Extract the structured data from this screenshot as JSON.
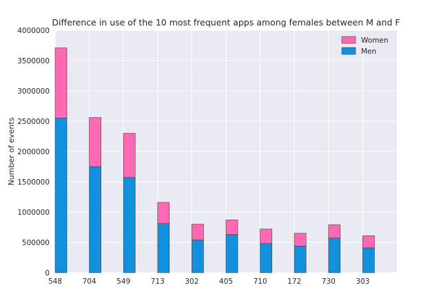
{
  "chart_data": {
    "type": "bar",
    "stacked": true,
    "title": "Difference in use of the 10 most frequent apps among females between M and F",
    "xlabel": "",
    "ylabel": "Number of events",
    "categories": [
      "548",
      "704",
      "549",
      "713",
      "302",
      "405",
      "710",
      "172",
      "730",
      "303"
    ],
    "series": [
      {
        "name": "Men",
        "color": "#1390dd",
        "values": [
          2550000,
          1750000,
          1570000,
          810000,
          540000,
          630000,
          480000,
          440000,
          570000,
          410000
        ]
      },
      {
        "name": "Women",
        "color": "#ff69b4",
        "values": [
          1160000,
          810000,
          730000,
          350000,
          260000,
          240000,
          240000,
          210000,
          220000,
          200000
        ]
      }
    ],
    "ylim": [
      0,
      4000000
    ],
    "yticks": [
      "0",
      "500000",
      "1000000",
      "1500000",
      "2000000",
      "2500000",
      "3000000",
      "3500000",
      "4000000"
    ],
    "grid": true,
    "legend_position": "top-right",
    "legend_order": [
      "Women",
      "Men"
    ],
    "colors": {
      "background": "#eaeaf2",
      "grid": "#ffffff",
      "edge": "#3a3a3a"
    }
  }
}
